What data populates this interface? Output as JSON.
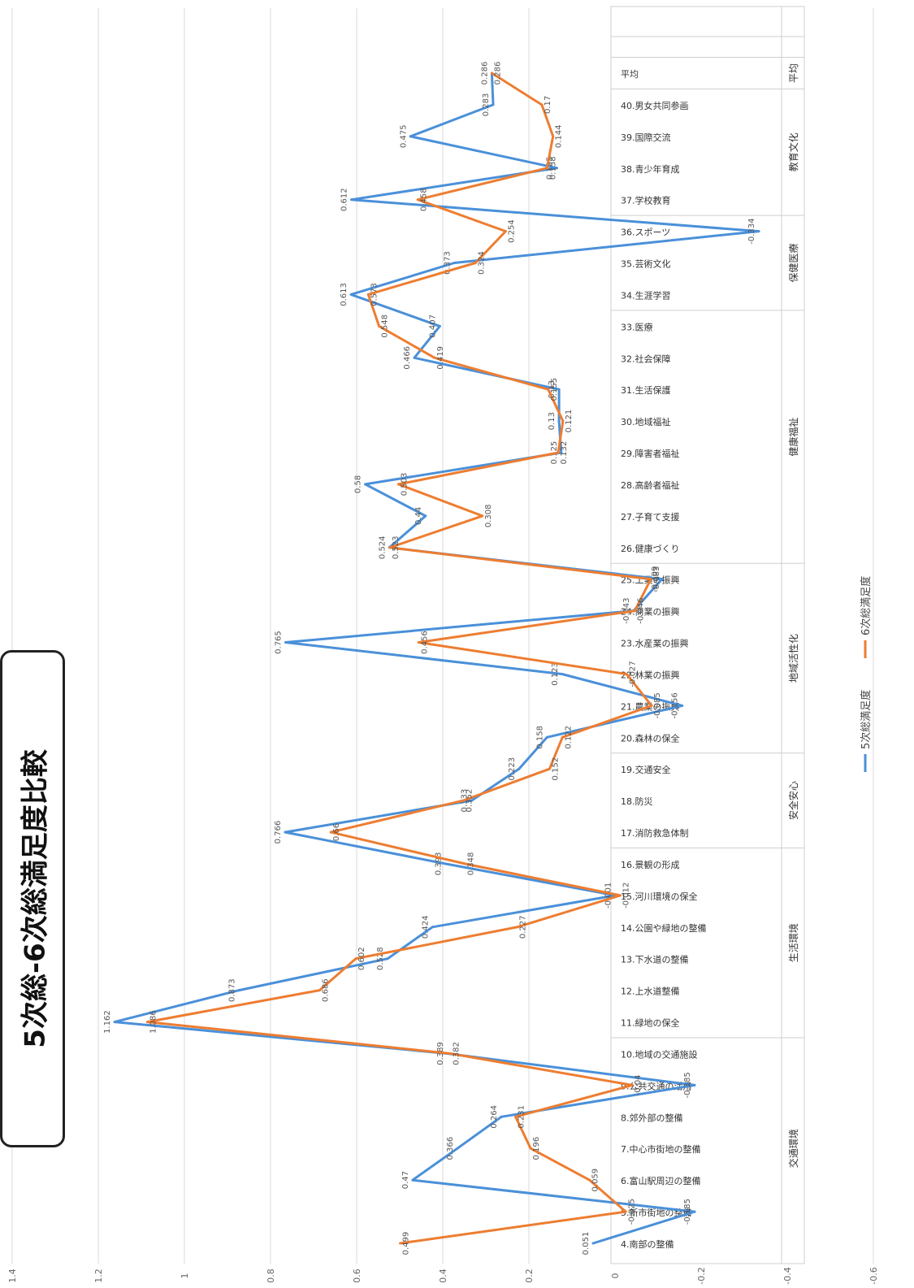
{
  "chart_data": {
    "type": "line",
    "title": "5次総-6次総満足度比較",
    "orientation": "rotated-90-ccw",
    "value_axis": {
      "min": -0.6,
      "max": 1.4,
      "step": 0.2,
      "tick_labels": [
        "-0.6",
        "-0.4",
        "-0.2",
        "0",
        "0.2",
        "0.4",
        "0.6",
        "0.8",
        "1",
        "1.2",
        "1.4"
      ]
    },
    "grid": true,
    "legend_position": "bottom",
    "categories": [
      "4.南部の整備",
      "5.新市街地の整備",
      "6.富山駅周辺の整備",
      "7.中心市街地の整備",
      "8.郊外部の整備",
      "9.公共交通の活用",
      "10.地域の交通施設",
      "11.緑地の保全",
      "12.上水道整備",
      "13.下水道の整備",
      "14.公園や緑地の整備",
      "15.河川環境の保全",
      "16.景観の形成",
      "17.消防救急体制",
      "18.防災",
      "19.交通安全",
      "20.森林の保全",
      "21.農業の振興",
      "22.林業の振興",
      "23.水産業の振興",
      "24.商業の振興",
      "25.工業の振興",
      "26.健康づくり",
      "27.子育て支援",
      "28.高齢者福祉",
      "29.障害者福祉",
      "30.地域福祉",
      "31.生活保護",
      "32.社会保障",
      "33.医療",
      "34.生涯学習",
      "35.芸術文化",
      "36.スポーツ",
      "37.学校教育",
      "38.青少年育成",
      "39.国際交流",
      "40.男女共同参画",
      "平均"
    ],
    "groups": [
      {
        "name": "交通環境",
        "from": 0,
        "to": 6
      },
      {
        "name": "生活環境",
        "from": 7,
        "to": 12
      },
      {
        "name": "安全安心",
        "from": 13,
        "to": 15
      },
      {
        "name": "地域活性化",
        "from": 16,
        "to": 21
      },
      {
        "name": "健康福祉",
        "from": 22,
        "to": 29
      },
      {
        "name": "保健医療",
        "from": 30,
        "to": 32
      },
      {
        "name": "教育文化",
        "from": 33,
        "to": 36
      },
      {
        "name": "平均",
        "from": 37,
        "to": 37
      }
    ],
    "series": [
      {
        "name": "5次総満足度",
        "color": "#4a90d9",
        "values": [
          0.051,
          -0.185,
          0.47,
          0.366,
          0.264,
          -0.185,
          0.389,
          1.162,
          0.873,
          0.528,
          0.424,
          -0.001,
          0.393,
          0.766,
          0.333,
          0.223,
          0.158,
          -0.156,
          0.123,
          0.765,
          -0.043,
          -0.109,
          0.524,
          0.44,
          0.58,
          0.125,
          0.13,
          0.13,
          0.466,
          0.407,
          0.613,
          0.373,
          -0.334,
          0.612,
          0.135,
          0.475,
          0.283,
          0.286
        ]
      },
      {
        "name": "6次総満足度",
        "color": "#ed7d31",
        "values": [
          0.499,
          -0.025,
          0.059,
          0.196,
          0.231,
          -0.04,
          0.382,
          1.086,
          0.686,
          0.602,
          0.227,
          -0.012,
          0.348,
          0.66,
          0.352,
          0.152,
          0.122,
          -0.085,
          -0.027,
          0.456,
          -0.046,
          -0.083,
          0.523,
          0.308,
          0.503,
          0.132,
          0.121,
          0.155,
          0.419,
          0.548,
          0.573,
          0.324,
          0.254,
          0.458,
          0.158,
          0.144,
          0.17,
          0.286
        ]
      }
    ]
  }
}
